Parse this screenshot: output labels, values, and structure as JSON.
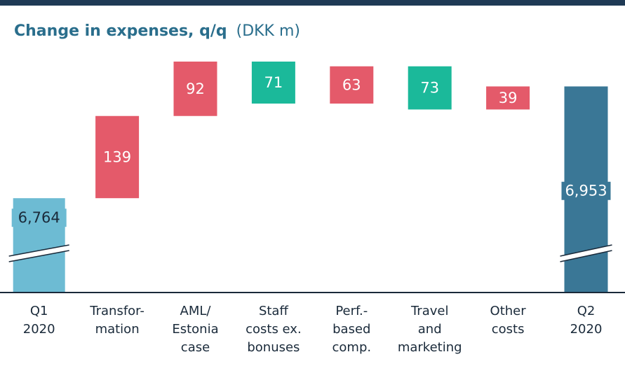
{
  "chart_data": {
    "type": "waterfall",
    "title": "Change in expenses, q/q",
    "subtitle": "(DKK m)",
    "categories": [
      [
        "Q1",
        "2020"
      ],
      [
        "Transfor-",
        "mation"
      ],
      [
        "AML/",
        "Estonia",
        "case"
      ],
      [
        "Staff",
        "costs ex.",
        "bonuses"
      ],
      [
        "Perf.-",
        "based",
        "comp."
      ],
      [
        "Travel",
        "and",
        "marketing"
      ],
      [
        "Other",
        "costs"
      ],
      [
        "Q2",
        "2020"
      ]
    ],
    "values": [
      6764,
      139,
      92,
      -71,
      63,
      -73,
      39,
      6953
    ],
    "value_labels": [
      "6,764",
      "139",
      "92",
      "71",
      "63",
      "73",
      "39",
      "6,953"
    ],
    "total_indices": [
      0,
      7
    ],
    "colors": {
      "start": "#6dbbd3",
      "increase": "#e45a6a",
      "decrease": "#1bb99a",
      "end": "#3a7796"
    },
    "axis_break": true
  }
}
